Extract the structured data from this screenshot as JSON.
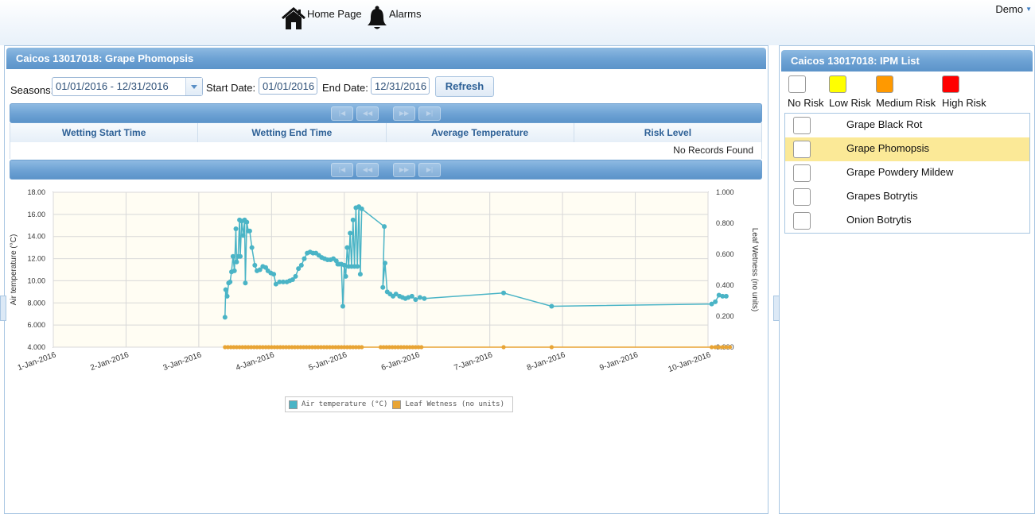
{
  "nav": {
    "home_label": "Home Page",
    "alarms_label": "Alarms",
    "user_label": "Demo"
  },
  "left_panel": {
    "title": "Caicos 13017018: Grape Phomopsis",
    "filters": {
      "seasons_label": "Seasons:",
      "seasons_value": "01/01/2016 - 12/31/2016",
      "start_label": "Start Date:",
      "start_value": "01/01/2016",
      "end_label": "End Date:",
      "end_value": "12/31/2016",
      "refresh_label": "Refresh"
    },
    "grid": {
      "columns": [
        "Wetting Start Time",
        "Wetting End Time",
        "Average Temperature",
        "Risk Level"
      ],
      "empty_text": "No Records Found",
      "pager_icons": [
        "first-page-icon",
        "prev-page-icon",
        "next-page-icon",
        "last-page-icon"
      ]
    }
  },
  "right_panel": {
    "title": "Caicos 13017018: IPM List",
    "risk_legend": [
      {
        "label": "No Risk",
        "color": "#ffffff"
      },
      {
        "label": "Low Risk",
        "color": "#ffff00"
      },
      {
        "label": "Medium Risk",
        "color": "#ff9900"
      },
      {
        "label": "High Risk",
        "color": "#ff0000"
      }
    ],
    "items": [
      {
        "name": "Grape Black Rot",
        "selected": false
      },
      {
        "name": "Grape Phomopsis",
        "selected": true
      },
      {
        "name": "Grape Powdery Mildew",
        "selected": false
      },
      {
        "name": "Grapes Botrytis",
        "selected": false
      },
      {
        "name": "Onion Botrytis",
        "selected": false
      }
    ]
  },
  "chart_data": {
    "type": "line",
    "xlabel": "",
    "ylabel": "Air temperature (°C)",
    "y2label": "Leaf Wetness (no units)",
    "x_ticks": [
      "1-Jan-2016",
      "2-Jan-2016",
      "3-Jan-2016",
      "4-Jan-2016",
      "5-Jan-2016",
      "6-Jan-2016",
      "7-Jan-2016",
      "8-Jan-2016",
      "9-Jan-2016",
      "10-Jan-2016"
    ],
    "xlim": [
      0,
      9
    ],
    "ylim": [
      4,
      18
    ],
    "y_ticks": [
      "4.000",
      "6.000",
      "8.000",
      "10.00",
      "12.00",
      "14.00",
      "16.00",
      "18.00"
    ],
    "y2lim": [
      0,
      1
    ],
    "y2_ticks": [
      "0.000",
      "0.200",
      "0.400",
      "0.600",
      "0.800",
      "1.000"
    ],
    "grid": true,
    "legend": "bottom-center",
    "series": [
      {
        "name": "Air temperature (°C)",
        "axis": "left",
        "color": "#4ab4c6",
        "points": [
          [
            2.36,
            6.7
          ],
          [
            2.37,
            9.2
          ],
          [
            2.39,
            8.6
          ],
          [
            2.41,
            9.8
          ],
          [
            2.43,
            9.9
          ],
          [
            2.45,
            10.8
          ],
          [
            2.47,
            12.2
          ],
          [
            2.49,
            10.9
          ],
          [
            2.51,
            14.7
          ],
          [
            2.52,
            11.7
          ],
          [
            2.54,
            12.2
          ],
          [
            2.56,
            15.5
          ],
          [
            2.57,
            12.2
          ],
          [
            2.59,
            15.4
          ],
          [
            2.61,
            14.1
          ],
          [
            2.63,
            15.5
          ],
          [
            2.64,
            9.8
          ],
          [
            2.66,
            15.3
          ],
          [
            2.68,
            14.5
          ],
          [
            2.7,
            14.5
          ],
          [
            2.73,
            13.0
          ],
          [
            2.77,
            11.4
          ],
          [
            2.8,
            10.9
          ],
          [
            2.84,
            11.0
          ],
          [
            2.88,
            11.3
          ],
          [
            2.92,
            11.2
          ],
          [
            2.95,
            10.9
          ],
          [
            2.99,
            10.7
          ],
          [
            3.03,
            10.6
          ],
          [
            3.06,
            9.7
          ],
          [
            3.11,
            9.9
          ],
          [
            3.16,
            9.9
          ],
          [
            3.21,
            9.9
          ],
          [
            3.25,
            10.0
          ],
          [
            3.29,
            10.1
          ],
          [
            3.33,
            10.4
          ],
          [
            3.37,
            11.1
          ],
          [
            3.41,
            11.4
          ],
          [
            3.45,
            12.0
          ],
          [
            3.49,
            12.5
          ],
          [
            3.53,
            12.6
          ],
          [
            3.57,
            12.5
          ],
          [
            3.61,
            12.5
          ],
          [
            3.65,
            12.3
          ],
          [
            3.69,
            12.1
          ],
          [
            3.73,
            12.0
          ],
          [
            3.77,
            11.9
          ],
          [
            3.81,
            11.9
          ],
          [
            3.85,
            12.0
          ],
          [
            3.89,
            11.8
          ],
          [
            3.91,
            11.5
          ],
          [
            3.93,
            11.5
          ],
          [
            3.96,
            11.5
          ],
          [
            3.98,
            7.7
          ],
          [
            4.0,
            11.4
          ],
          [
            4.02,
            10.4
          ],
          [
            4.04,
            13.0
          ],
          [
            4.06,
            11.3
          ],
          [
            4.08,
            14.3
          ],
          [
            4.1,
            11.3
          ],
          [
            4.12,
            15.5
          ],
          [
            4.14,
            11.3
          ],
          [
            4.16,
            16.6
          ],
          [
            4.18,
            11.3
          ],
          [
            4.2,
            16.7
          ],
          [
            4.22,
            10.6
          ],
          [
            4.24,
            16.5
          ],
          [
            4.55,
            14.9
          ],
          [
            4.53,
            9.4
          ],
          [
            4.56,
            11.6
          ],
          [
            4.59,
            9.0
          ],
          [
            4.63,
            8.8
          ],
          [
            4.67,
            8.6
          ],
          [
            4.71,
            8.8
          ],
          [
            4.76,
            8.6
          ],
          [
            4.8,
            8.5
          ],
          [
            4.84,
            8.4
          ],
          [
            4.88,
            8.5
          ],
          [
            4.93,
            8.6
          ],
          [
            4.98,
            8.3
          ],
          [
            5.04,
            8.5
          ],
          [
            5.1,
            8.4
          ],
          [
            6.19,
            8.9
          ],
          [
            6.85,
            7.7
          ],
          [
            9.05,
            7.9
          ],
          [
            9.1,
            8.1
          ],
          [
            9.15,
            8.7
          ],
          [
            9.2,
            8.6
          ],
          [
            9.25,
            8.6
          ]
        ]
      },
      {
        "name": "Leaf Wetness (no units)",
        "axis": "right",
        "color": "#e8a434",
        "points": [
          [
            2.36,
            0
          ],
          [
            2.4,
            0
          ],
          [
            2.44,
            0
          ],
          [
            2.48,
            0
          ],
          [
            2.52,
            0
          ],
          [
            2.56,
            0
          ],
          [
            2.6,
            0
          ],
          [
            2.64,
            0
          ],
          [
            2.68,
            0
          ],
          [
            2.72,
            0
          ],
          [
            2.76,
            0
          ],
          [
            2.8,
            0
          ],
          [
            2.84,
            0
          ],
          [
            2.88,
            0
          ],
          [
            2.92,
            0
          ],
          [
            2.96,
            0
          ],
          [
            3.0,
            0
          ],
          [
            3.04,
            0
          ],
          [
            3.08,
            0
          ],
          [
            3.12,
            0
          ],
          [
            3.16,
            0
          ],
          [
            3.2,
            0
          ],
          [
            3.24,
            0
          ],
          [
            3.28,
            0
          ],
          [
            3.32,
            0
          ],
          [
            3.36,
            0
          ],
          [
            3.4,
            0
          ],
          [
            3.44,
            0
          ],
          [
            3.48,
            0
          ],
          [
            3.52,
            0
          ],
          [
            3.56,
            0
          ],
          [
            3.6,
            0
          ],
          [
            3.64,
            0
          ],
          [
            3.68,
            0
          ],
          [
            3.72,
            0
          ],
          [
            3.76,
            0
          ],
          [
            3.8,
            0
          ],
          [
            3.84,
            0
          ],
          [
            3.88,
            0
          ],
          [
            3.92,
            0
          ],
          [
            3.96,
            0
          ],
          [
            4.0,
            0
          ],
          [
            4.04,
            0
          ],
          [
            4.08,
            0
          ],
          [
            4.12,
            0
          ],
          [
            4.16,
            0
          ],
          [
            4.2,
            0
          ],
          [
            4.24,
            0
          ],
          [
            4.5,
            0
          ],
          [
            4.54,
            0
          ],
          [
            4.58,
            0
          ],
          [
            4.62,
            0
          ],
          [
            4.66,
            0
          ],
          [
            4.7,
            0
          ],
          [
            4.74,
            0
          ],
          [
            4.78,
            0
          ],
          [
            4.82,
            0
          ],
          [
            4.86,
            0
          ],
          [
            4.9,
            0
          ],
          [
            4.94,
            0
          ],
          [
            4.98,
            0
          ],
          [
            5.02,
            0
          ],
          [
            5.06,
            0
          ],
          [
            6.19,
            0
          ],
          [
            6.85,
            0
          ],
          [
            9.05,
            0
          ],
          [
            9.1,
            0
          ],
          [
            9.15,
            0
          ],
          [
            9.2,
            0
          ],
          [
            9.25,
            0
          ],
          [
            9.3,
            0
          ]
        ]
      }
    ]
  }
}
